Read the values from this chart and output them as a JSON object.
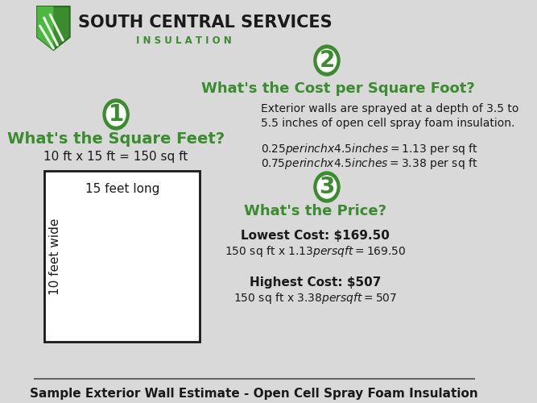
{
  "bg_color": "#d9d9d9",
  "green_color": "#3a8c2f",
  "dark_color": "#1a1a1a",
  "white_color": "#ffffff",
  "title_company": "SOUTH CENTRAL SERVICES",
  "title_sub": "I N S U L A T I O N",
  "section1_heading": "What's the Square Feet?",
  "section1_formula": "10 ft x 15 ft = 150 sq ft",
  "section1_box_top": "15 feet long",
  "section1_box_side": "10 feet wide",
  "section2_heading": "What's the Cost per Square Foot?",
  "section2_desc1": "Exterior walls are sprayed at a depth of 3.5 to",
  "section2_desc2": "5.5 inches of open cell spray foam insulation.",
  "section2_line1": "$0.25 per inch x 4.5 inches = $1.13 per sq ft",
  "section2_line2": "$0.75 per inch x 4.5 inches = $3.38 per sq ft",
  "section3_heading": "What's the Price?",
  "section3_low_title": "Lowest Cost: $169.50",
  "section3_low_formula": "150 sq ft x $1.13 per sq ft = $169.50",
  "section3_high_title": "Highest Cost: $507",
  "section3_high_formula": "150 sq ft x $3.38 per sq ft = $507",
  "footer": "Sample Exterior Wall Estimate - Open Cell Spray Foam Insulation",
  "badge1": "1",
  "badge2": "2",
  "badge3": "3",
  "shield_lines": [
    [
      -14,
      -18,
      6,
      16
    ],
    [
      -5,
      -22,
      14,
      10
    ],
    [
      -20,
      -8,
      0,
      20
    ]
  ]
}
